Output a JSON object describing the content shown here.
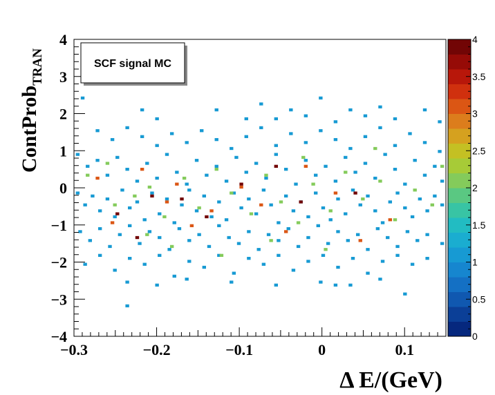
{
  "chart_data": {
    "type": "heatmap",
    "title": "SCF signal MC",
    "xlabel": "Δ E/(GeV)",
    "ylabel_main": "ContProb",
    "ylabel_sub": "TRAN",
    "xlim": [
      -0.3,
      0.15
    ],
    "ylim": [
      -4,
      4
    ],
    "x_ticks": [
      -0.3,
      -0.2,
      -0.1,
      0,
      0.1
    ],
    "x_tick_labels": [
      "−0.3",
      "−0.2",
      "−0.1",
      "0",
      "0.1"
    ],
    "y_ticks": [
      -4,
      -3,
      -2,
      -1,
      0,
      1,
      2,
      3,
      4
    ],
    "y_tick_labels": [
      "−4",
      "−3",
      "−2",
      "−1",
      "0",
      "1",
      "2",
      "3",
      "4"
    ],
    "z_range": [
      0,
      4
    ],
    "z_ticks": [
      0,
      0.5,
      1,
      1.5,
      2,
      2.5,
      3,
      3.5,
      4
    ],
    "z_tick_labels": [
      "0",
      "0.5",
      "1",
      "1.5",
      "2",
      "2.5",
      "3",
      "3.5",
      "4"
    ],
    "palette": [
      "#06287e",
      "#0b3f97",
      "#1058b0",
      "#1470c4",
      "#1686cf",
      "#179ad3",
      "#1aadd0",
      "#22bcc2",
      "#38c4a4",
      "#5ac882",
      "#84cb5b",
      "#a7cb37",
      "#c4c023",
      "#d5a11f",
      "#dc7d1c",
      "#db5614",
      "#d0300e",
      "#b8170a",
      "#960b07",
      "#720505"
    ],
    "nbins_x": 100,
    "nbins_y": 100,
    "bins": [
      [
        -0.2895,
        2.42,
        1
      ],
      [
        -0.2355,
        -3.18,
        1
      ],
      [
        -0.2175,
        2.1,
        1
      ],
      [
        -0.1995,
        1.86,
        1
      ],
      [
        -0.1275,
        2.1,
        1
      ],
      [
        -0.0915,
        1.86,
        1
      ],
      [
        -0.0735,
        2.26,
        1
      ],
      [
        -0.0555,
        1.86,
        1
      ],
      [
        -0.0375,
        2.1,
        1
      ],
      [
        -0.0195,
        1.94,
        1
      ],
      [
        -0.0015,
        2.42,
        1
      ],
      [
        0.0165,
        1.78,
        1
      ],
      [
        0.0345,
        2.1,
        1
      ],
      [
        0.0525,
        1.94,
        1
      ],
      [
        0.0705,
        2.18,
        1
      ],
      [
        0.0885,
        1.86,
        1
      ],
      [
        0.1245,
        2.1,
        1
      ],
      [
        0.1425,
        1.78,
        1
      ],
      [
        -0.2715,
        1.54,
        1
      ],
      [
        -0.2535,
        1.3,
        1
      ],
      [
        -0.2355,
        1.62,
        1
      ],
      [
        -0.2175,
        1.38,
        1
      ],
      [
        -0.1995,
        1.14,
        1
      ],
      [
        -0.1815,
        1.46,
        1
      ],
      [
        -0.1635,
        1.22,
        1
      ],
      [
        -0.1455,
        1.54,
        1
      ],
      [
        -0.1275,
        1.3,
        1
      ],
      [
        -0.1095,
        1.06,
        1
      ],
      [
        -0.0915,
        1.38,
        1
      ],
      [
        -0.0735,
        1.62,
        1
      ],
      [
        -0.0555,
        1.14,
        1
      ],
      [
        -0.0375,
        1.46,
        1
      ],
      [
        -0.0195,
        1.22,
        1
      ],
      [
        -0.0015,
        1.54,
        1
      ],
      [
        0.0165,
        1.3,
        1
      ],
      [
        0.0345,
        1.06,
        1
      ],
      [
        0.0525,
        1.38,
        1
      ],
      [
        0.0705,
        1.62,
        1
      ],
      [
        0.0885,
        1.14,
        1
      ],
      [
        0.1065,
        1.46,
        1
      ],
      [
        0.1245,
        1.22,
        1
      ],
      [
        0.1425,
        0.98,
        1
      ],
      [
        -0.2955,
        0.9,
        1
      ],
      [
        -0.2835,
        0.58,
        1
      ],
      [
        -0.2715,
        0.74,
        1
      ],
      [
        -0.2595,
        0.34,
        1
      ],
      [
        -0.2475,
        0.82,
        1
      ],
      [
        -0.2355,
        0.5,
        1
      ],
      [
        -0.2235,
        0.18,
        1
      ],
      [
        -0.2115,
        0.66,
        1
      ],
      [
        -0.1995,
        0.26,
        1
      ],
      [
        -0.1875,
        0.9,
        1
      ],
      [
        -0.1755,
        0.42,
        1
      ],
      [
        -0.1635,
        0.1,
        1
      ],
      [
        -0.1515,
        0.74,
        1
      ],
      [
        -0.1395,
        0.34,
        1
      ],
      [
        -0.1275,
        0.58,
        1
      ],
      [
        -0.1155,
        0.18,
        1
      ],
      [
        -0.1035,
        0.82,
        1
      ],
      [
        -0.0915,
        0.42,
        1
      ],
      [
        -0.0795,
        0.66,
        1
      ],
      [
        -0.0675,
        0.26,
        1
      ],
      [
        -0.0555,
        0.9,
        1
      ],
      [
        -0.0435,
        0.5,
        1
      ],
      [
        -0.0315,
        0.1,
        1
      ],
      [
        -0.0195,
        0.74,
        1
      ],
      [
        -0.0075,
        0.34,
        1
      ],
      [
        0.0045,
        0.58,
        1
      ],
      [
        0.0165,
        0.18,
        1
      ],
      [
        0.0285,
        0.82,
        1
      ],
      [
        0.0405,
        0.42,
        1
      ],
      [
        0.0525,
        0.66,
        1
      ],
      [
        0.0645,
        0.26,
        1
      ],
      [
        0.0765,
        0.9,
        1
      ],
      [
        0.0885,
        0.5,
        1
      ],
      [
        0.1005,
        0.1,
        1
      ],
      [
        0.1125,
        0.74,
        1
      ],
      [
        0.1245,
        0.34,
        1
      ],
      [
        0.1365,
        0.58,
        1
      ],
      [
        0.1455,
        0.18,
        1
      ],
      [
        -0.2955,
        -0.14,
        1
      ],
      [
        -0.2865,
        -0.46,
        1
      ],
      [
        -0.2775,
        -0.22,
        1
      ],
      [
        -0.2685,
        -0.62,
        1
      ],
      [
        -0.2595,
        -0.3,
        1
      ],
      [
        -0.2505,
        -0.78,
        1
      ],
      [
        -0.2415,
        -0.06,
        1
      ],
      [
        -0.2325,
        -0.54,
        1
      ],
      [
        -0.2235,
        -0.38,
        1
      ],
      [
        -0.2145,
        -0.86,
        1
      ],
      [
        -0.2055,
        -0.14,
        1
      ],
      [
        -0.1965,
        -0.7,
        1
      ],
      [
        -0.1875,
        -0.3,
        1
      ],
      [
        -0.1785,
        -0.94,
        1
      ],
      [
        -0.1695,
        -0.46,
        1
      ],
      [
        -0.1605,
        -0.06,
        1
      ],
      [
        -0.1515,
        -0.62,
        1
      ],
      [
        -0.1425,
        -0.22,
        1
      ],
      [
        -0.1335,
        -0.78,
        1
      ],
      [
        -0.1245,
        -0.38,
        1
      ],
      [
        -0.1155,
        -0.86,
        1
      ],
      [
        -0.1065,
        -0.14,
        1
      ],
      [
        -0.0975,
        -0.54,
        1
      ],
      [
        -0.0885,
        -0.3,
        1
      ],
      [
        -0.0795,
        -0.7,
        1
      ],
      [
        -0.0705,
        -0.06,
        1
      ],
      [
        -0.0615,
        -0.46,
        1
      ],
      [
        -0.0525,
        -0.94,
        1
      ],
      [
        -0.0435,
        -0.22,
        1
      ],
      [
        -0.0345,
        -0.62,
        1
      ],
      [
        -0.0255,
        -0.38,
        1
      ],
      [
        -0.0165,
        -0.78,
        1
      ],
      [
        -0.0075,
        -0.14,
        1
      ],
      [
        0.0015,
        -0.54,
        1
      ],
      [
        0.0105,
        -0.86,
        1
      ],
      [
        0.0195,
        -0.3,
        1
      ],
      [
        0.0285,
        -0.7,
        1
      ],
      [
        0.0375,
        -0.06,
        1
      ],
      [
        0.0465,
        -0.46,
        1
      ],
      [
        0.0555,
        -0.22,
        1
      ],
      [
        0.0645,
        -0.62,
        1
      ],
      [
        0.0735,
        -0.94,
        1
      ],
      [
        0.0825,
        -0.38,
        1
      ],
      [
        0.0915,
        -0.14,
        1
      ],
      [
        0.1005,
        -0.54,
        1
      ],
      [
        0.1095,
        -0.78,
        1
      ],
      [
        0.1185,
        -0.3,
        1
      ],
      [
        0.1275,
        -0.62,
        1
      ],
      [
        0.1365,
        -0.22,
        1
      ],
      [
        0.1455,
        -0.46,
        1
      ],
      [
        -0.2925,
        -1.18,
        1
      ],
      [
        -0.2805,
        -1.42,
        1
      ],
      [
        -0.2685,
        -1.1,
        1
      ],
      [
        -0.2565,
        -1.58,
        1
      ],
      [
        -0.2445,
        -1.26,
        1
      ],
      [
        -0.2325,
        -1.02,
        1
      ],
      [
        -0.2205,
        -1.5,
        1
      ],
      [
        -0.2085,
        -1.18,
        1
      ],
      [
        -0.1965,
        -1.34,
        1
      ],
      [
        -0.1845,
        -1.66,
        1
      ],
      [
        -0.1725,
        -1.1,
        1
      ],
      [
        -0.1605,
        -1.42,
        1
      ],
      [
        -0.1485,
        -1.26,
        1
      ],
      [
        -0.1365,
        -1.58,
        1
      ],
      [
        -0.1245,
        -1.02,
        1
      ],
      [
        -0.1125,
        -1.34,
        1
      ],
      [
        -0.1005,
        -1.5,
        1
      ],
      [
        -0.0885,
        -1.18,
        1
      ],
      [
        -0.0765,
        -1.66,
        1
      ],
      [
        -0.0645,
        -1.26,
        1
      ],
      [
        -0.0525,
        -1.42,
        1
      ],
      [
        -0.0405,
        -1.1,
        1
      ],
      [
        -0.0285,
        -1.58,
        1
      ],
      [
        -0.0165,
        -1.34,
        1
      ],
      [
        -0.0045,
        -1.02,
        1
      ],
      [
        0.0075,
        -1.5,
        1
      ],
      [
        0.0195,
        -1.18,
        1
      ],
      [
        0.0315,
        -1.42,
        1
      ],
      [
        0.0435,
        -1.26,
        1
      ],
      [
        0.0555,
        -1.66,
        1
      ],
      [
        0.0675,
        -1.1,
        1
      ],
      [
        0.0795,
        -1.34,
        1
      ],
      [
        0.0915,
        -1.58,
        1
      ],
      [
        0.1035,
        -1.18,
        1
      ],
      [
        0.1155,
        -1.42,
        1
      ],
      [
        0.1275,
        -1.26,
        1
      ],
      [
        0.1455,
        -1.5,
        1
      ],
      [
        -0.2865,
        -2.06,
        1
      ],
      [
        -0.2685,
        -1.82,
        1
      ],
      [
        -0.2505,
        -2.22,
        1
      ],
      [
        -0.2325,
        -1.9,
        1
      ],
      [
        -0.2145,
        -2.06,
        1
      ],
      [
        -0.1965,
        -1.82,
        1
      ],
      [
        -0.1785,
        -2.38,
        1
      ],
      [
        -0.1605,
        -1.98,
        1
      ],
      [
        -0.1425,
        -2.14,
        1
      ],
      [
        -0.1245,
        -1.82,
        1
      ],
      [
        -0.1065,
        -2.3,
        1
      ],
      [
        -0.0885,
        -1.9,
        1
      ],
      [
        -0.0705,
        -2.06,
        1
      ],
      [
        -0.0525,
        -1.82,
        1
      ],
      [
        -0.0345,
        -2.22,
        1
      ],
      [
        -0.0165,
        -1.98,
        1
      ],
      [
        0.0015,
        -1.82,
        1
      ],
      [
        0.0195,
        -2.14,
        1
      ],
      [
        0.0375,
        -1.9,
        1
      ],
      [
        0.0555,
        -2.3,
        1
      ],
      [
        0.0735,
        -1.98,
        1
      ],
      [
        0.0915,
        -1.82,
        1
      ],
      [
        0.1095,
        -2.06,
        1
      ],
      [
        0.1275,
        -1.9,
        1
      ],
      [
        -0.2355,
        -2.54,
        1
      ],
      [
        -0.1995,
        -2.62,
        1
      ],
      [
        -0.1635,
        -2.46,
        1
      ],
      [
        -0.1095,
        -2.54,
        1
      ],
      [
        -0.0555,
        -2.62,
        1
      ],
      [
        -0.0015,
        -2.54,
        1
      ],
      [
        0.0345,
        -2.62,
        1
      ],
      [
        0.0705,
        -2.46,
        1
      ],
      [
        0.1005,
        -2.86,
        1
      ],
      [
        0.0165,
        -2.62,
        1
      ],
      [
        -0.2835,
        0.34,
        2
      ],
      [
        -0.2505,
        -0.46,
        2
      ],
      [
        -0.2265,
        -0.22,
        2
      ],
      [
        -0.2085,
        0.02,
        2
      ],
      [
        -0.1905,
        -0.78,
        2
      ],
      [
        -0.1665,
        0.26,
        2
      ],
      [
        -0.1485,
        -0.54,
        2
      ],
      [
        -0.1275,
        0.5,
        2
      ],
      [
        -0.1095,
        -0.14,
        2
      ],
      [
        -0.0855,
        -0.7,
        2
      ],
      [
        -0.0675,
        0.34,
        2
      ],
      [
        -0.0495,
        -0.38,
        2
      ],
      [
        -0.0285,
        -0.94,
        2
      ],
      [
        -0.0105,
        0.1,
        2
      ],
      [
        0.0105,
        -0.62,
        2
      ],
      [
        0.0285,
        0.42,
        2
      ],
      [
        0.0495,
        -0.3,
        2
      ],
      [
        0.0705,
        0.18,
        2
      ],
      [
        0.0885,
        -0.86,
        2
      ],
      [
        0.1125,
        -0.06,
        2
      ],
      [
        0.1335,
        -0.46,
        2
      ],
      [
        0.1455,
        0.58,
        2
      ],
      [
        -0.2115,
        -1.26,
        2
      ],
      [
        -0.1815,
        -1.58,
        2
      ],
      [
        -0.1215,
        -1.82,
        2
      ],
      [
        -0.0615,
        -1.42,
        2
      ],
      [
        0.0045,
        -1.66,
        2
      ],
      [
        -0.2595,
        0.66,
        2
      ],
      [
        -0.0225,
        0.82,
        2
      ],
      [
        0.0645,
        1.06,
        2
      ],
      [
        -0.2535,
        -0.94,
        3
      ],
      [
        -0.2175,
        0.5,
        3
      ],
      [
        -0.1875,
        -0.38,
        3
      ],
      [
        -0.1575,
        -1.02,
        3
      ],
      [
        -0.1335,
        -0.62,
        3
      ],
      [
        -0.0975,
        0.02,
        3
      ],
      [
        -0.0735,
        -0.46,
        3
      ],
      [
        -0.0435,
        -1.18,
        3
      ],
      [
        -0.0195,
        0.58,
        3
      ],
      [
        0.0165,
        -0.14,
        3
      ],
      [
        0.0465,
        -1.42,
        3
      ],
      [
        0.0825,
        -0.86,
        3
      ],
      [
        -0.1755,
        0.1,
        3
      ],
      [
        -0.2715,
        0.26,
        3
      ],
      [
        -0.2475,
        -0.7,
        4
      ],
      [
        -0.2235,
        -1.34,
        4
      ],
      [
        -0.1695,
        -0.3,
        4
      ],
      [
        -0.1395,
        -0.78,
        4
      ],
      [
        -0.0975,
        0.1,
        4
      ],
      [
        -0.0555,
        0.58,
        4
      ],
      [
        -0.0255,
        -0.38,
        4
      ],
      [
        0.0405,
        -0.14,
        4
      ],
      [
        -0.2055,
        -0.22,
        4
      ]
    ]
  }
}
